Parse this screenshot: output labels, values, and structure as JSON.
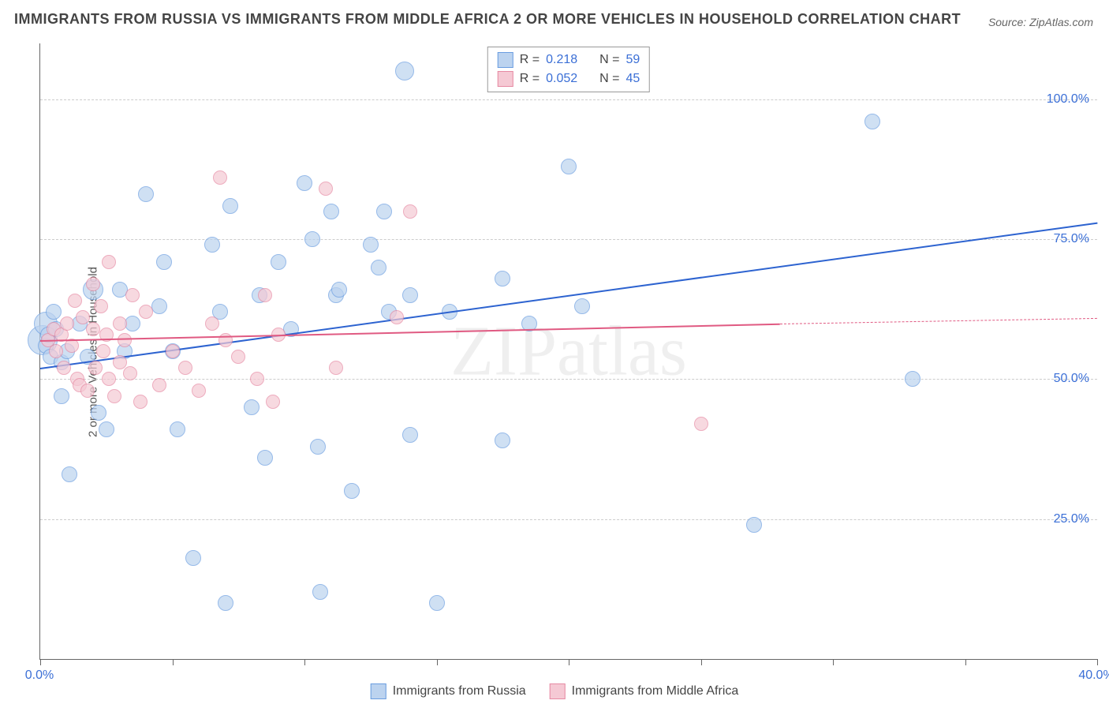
{
  "title": "IMMIGRANTS FROM RUSSIA VS IMMIGRANTS FROM MIDDLE AFRICA 2 OR MORE VEHICLES IN HOUSEHOLD CORRELATION CHART",
  "source": "Source: ZipAtlas.com",
  "ylabel": "2 or more Vehicles in Household",
  "watermark": "ZIPatlas",
  "chart": {
    "type": "scatter",
    "xlim": [
      0,
      40
    ],
    "ylim": [
      0,
      110
    ],
    "x_ticks": [
      0,
      5,
      10,
      15,
      20,
      25,
      30,
      35,
      40
    ],
    "x_tick_labels": {
      "0": "0.0%",
      "40": "40.0%"
    },
    "y_grid": [
      25,
      50,
      75,
      100
    ],
    "y_tick_labels": {
      "25": "25.0%",
      "50": "50.0%",
      "75": "75.0%",
      "100": "100.0%"
    },
    "background_color": "#ffffff",
    "grid_color": "#cccccc",
    "axis_color": "#666666",
    "tick_label_color": "#3b6fd6",
    "series": [
      {
        "name": "Immigrants from Russia",
        "marker_fill": "#bcd3ef",
        "marker_stroke": "#6a9de0",
        "marker_opacity": 0.7,
        "marker_r": 9,
        "line_color": "#2d63d0",
        "line_width": 2,
        "r_value": "0.218",
        "n_value": "59",
        "trend": {
          "x1": 0,
          "y1": 52,
          "x2": 40,
          "y2": 78,
          "dash": false,
          "extrap_x1": null
        },
        "points": [
          {
            "x": 0.1,
            "y": 57,
            "r": 18
          },
          {
            "x": 0.2,
            "y": 60,
            "r": 14
          },
          {
            "x": 0.2,
            "y": 56
          },
          {
            "x": 0.3,
            "y": 58
          },
          {
            "x": 0.4,
            "y": 54
          },
          {
            "x": 0.5,
            "y": 62
          },
          {
            "x": 0.6,
            "y": 59
          },
          {
            "x": 0.8,
            "y": 53
          },
          {
            "x": 0.8,
            "y": 47
          },
          {
            "x": 1.0,
            "y": 55
          },
          {
            "x": 1.1,
            "y": 33
          },
          {
            "x": 1.5,
            "y": 60
          },
          {
            "x": 1.8,
            "y": 54
          },
          {
            "x": 2.0,
            "y": 66,
            "r": 12
          },
          {
            "x": 2.2,
            "y": 44
          },
          {
            "x": 2.5,
            "y": 41
          },
          {
            "x": 3.0,
            "y": 66
          },
          {
            "x": 3.2,
            "y": 55
          },
          {
            "x": 3.5,
            "y": 60
          },
          {
            "x": 4.0,
            "y": 83
          },
          {
            "x": 4.5,
            "y": 63
          },
          {
            "x": 4.7,
            "y": 71
          },
          {
            "x": 5.0,
            "y": 55
          },
          {
            "x": 5.2,
            "y": 41
          },
          {
            "x": 5.8,
            "y": 18
          },
          {
            "x": 6.5,
            "y": 74
          },
          {
            "x": 6.8,
            "y": 62
          },
          {
            "x": 7.0,
            "y": 10
          },
          {
            "x": 7.2,
            "y": 81
          },
          {
            "x": 8.0,
            "y": 45
          },
          {
            "x": 8.3,
            "y": 65
          },
          {
            "x": 8.5,
            "y": 36
          },
          {
            "x": 9.0,
            "y": 71
          },
          {
            "x": 9.5,
            "y": 59
          },
          {
            "x": 10.0,
            "y": 85
          },
          {
            "x": 10.3,
            "y": 75
          },
          {
            "x": 10.5,
            "y": 38
          },
          {
            "x": 10.6,
            "y": 12
          },
          {
            "x": 11.0,
            "y": 80
          },
          {
            "x": 11.2,
            "y": 65
          },
          {
            "x": 11.3,
            "y": 66
          },
          {
            "x": 11.8,
            "y": 30
          },
          {
            "x": 12.5,
            "y": 74
          },
          {
            "x": 12.8,
            "y": 70
          },
          {
            "x": 13.0,
            "y": 80
          },
          {
            "x": 13.2,
            "y": 62
          },
          {
            "x": 13.8,
            "y": 105,
            "r": 11
          },
          {
            "x": 14.0,
            "y": 65
          },
          {
            "x": 14.0,
            "y": 40
          },
          {
            "x": 15.0,
            "y": 10
          },
          {
            "x": 15.5,
            "y": 62
          },
          {
            "x": 17.5,
            "y": 68
          },
          {
            "x": 17.5,
            "y": 39
          },
          {
            "x": 18.5,
            "y": 60
          },
          {
            "x": 20.0,
            "y": 88
          },
          {
            "x": 20.5,
            "y": 63
          },
          {
            "x": 27.0,
            "y": 24
          },
          {
            "x": 31.5,
            "y": 96
          },
          {
            "x": 33.0,
            "y": 50
          }
        ]
      },
      {
        "name": "Immigrants from Middle Africa",
        "marker_fill": "#f5c9d4",
        "marker_stroke": "#e68aa3",
        "marker_opacity": 0.7,
        "marker_r": 8,
        "line_color": "#e05a82",
        "line_width": 2,
        "r_value": "0.052",
        "n_value": "45",
        "trend": {
          "x1": 0,
          "y1": 57,
          "x2": 28,
          "y2": 60,
          "dash": false,
          "extrap_x1": 40,
          "extrap_y1": 61
        },
        "points": [
          {
            "x": 0.3,
            "y": 57
          },
          {
            "x": 0.5,
            "y": 59
          },
          {
            "x": 0.6,
            "y": 55
          },
          {
            "x": 0.8,
            "y": 58
          },
          {
            "x": 0.9,
            "y": 52
          },
          {
            "x": 1.0,
            "y": 60
          },
          {
            "x": 1.2,
            "y": 56
          },
          {
            "x": 1.3,
            "y": 64
          },
          {
            "x": 1.4,
            "y": 50
          },
          {
            "x": 1.5,
            "y": 49
          },
          {
            "x": 1.6,
            "y": 61
          },
          {
            "x": 1.8,
            "y": 48
          },
          {
            "x": 2.0,
            "y": 59
          },
          {
            "x": 2.0,
            "y": 67
          },
          {
            "x": 2.1,
            "y": 52
          },
          {
            "x": 2.3,
            "y": 63
          },
          {
            "x": 2.4,
            "y": 55
          },
          {
            "x": 2.5,
            "y": 58
          },
          {
            "x": 2.6,
            "y": 50
          },
          {
            "x": 2.6,
            "y": 71
          },
          {
            "x": 2.8,
            "y": 47
          },
          {
            "x": 3.0,
            "y": 60
          },
          {
            "x": 3.0,
            "y": 53
          },
          {
            "x": 3.2,
            "y": 57
          },
          {
            "x": 3.4,
            "y": 51
          },
          {
            "x": 3.5,
            "y": 65
          },
          {
            "x": 3.8,
            "y": 46
          },
          {
            "x": 4.0,
            "y": 62
          },
          {
            "x": 4.5,
            "y": 49
          },
          {
            "x": 5.0,
            "y": 55
          },
          {
            "x": 5.5,
            "y": 52
          },
          {
            "x": 6.0,
            "y": 48
          },
          {
            "x": 6.5,
            "y": 60
          },
          {
            "x": 6.8,
            "y": 86
          },
          {
            "x": 7.0,
            "y": 57
          },
          {
            "x": 7.5,
            "y": 54
          },
          {
            "x": 8.2,
            "y": 50
          },
          {
            "x": 8.5,
            "y": 65
          },
          {
            "x": 8.8,
            "y": 46
          },
          {
            "x": 9.0,
            "y": 58
          },
          {
            "x": 10.8,
            "y": 84
          },
          {
            "x": 11.2,
            "y": 52
          },
          {
            "x": 13.5,
            "y": 61
          },
          {
            "x": 14.0,
            "y": 80
          },
          {
            "x": 25.0,
            "y": 42
          }
        ]
      }
    ]
  },
  "legend": {
    "items": [
      {
        "swatch_fill": "#bcd3ef",
        "swatch_stroke": "#6a9de0",
        "label": "Immigrants from Russia"
      },
      {
        "swatch_fill": "#f5c9d4",
        "swatch_stroke": "#e68aa3",
        "label": "Immigrants from Middle Africa"
      }
    ]
  }
}
